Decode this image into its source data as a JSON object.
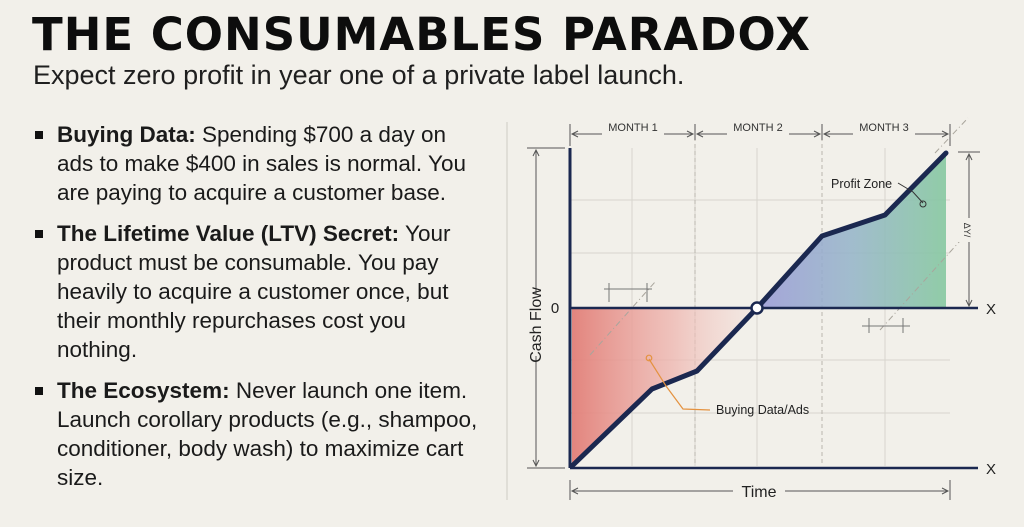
{
  "header": {
    "title": "THE CONSUMABLES PARADOX",
    "subtitle": "Expect zero profit in year one of a private label launch."
  },
  "bullets": [
    {
      "heading": "Buying Data:",
      "text": " Spending $700 a day on ads to make $400 in sales is normal. You are paying to acquire a customer base."
    },
    {
      "heading": "The Lifetime Value (LTV) Secret:",
      "text": " Your product must be consumable. You pay heavily to acquire a customer once, but their monthly repurchases cost you nothing."
    },
    {
      "heading": "The Ecosystem:",
      "text": " Never launch one item. Launch corollary products (e.g., shampoo, conditioner, body wash) to maximize cart size."
    }
  ],
  "diagram": {
    "months": [
      "MONTH 1",
      "MONTH 2",
      "MONTH 3"
    ],
    "y_axis_label": "Cash Flow",
    "x_axis_label": "Time",
    "zero_label": "0",
    "x_end_labels": [
      "X",
      "X"
    ],
    "delta_label": "ΔY/",
    "annotations": {
      "profit_zone": "Profit Zone",
      "buying_data": "Buying Data/Ads"
    },
    "colors": {
      "curve": "#1b2850",
      "loss_fill": "#e27f78",
      "profit_fill_start": "#8e8ed0",
      "profit_fill_end": "#84c9a0",
      "callout_line": "#e49240"
    }
  }
}
